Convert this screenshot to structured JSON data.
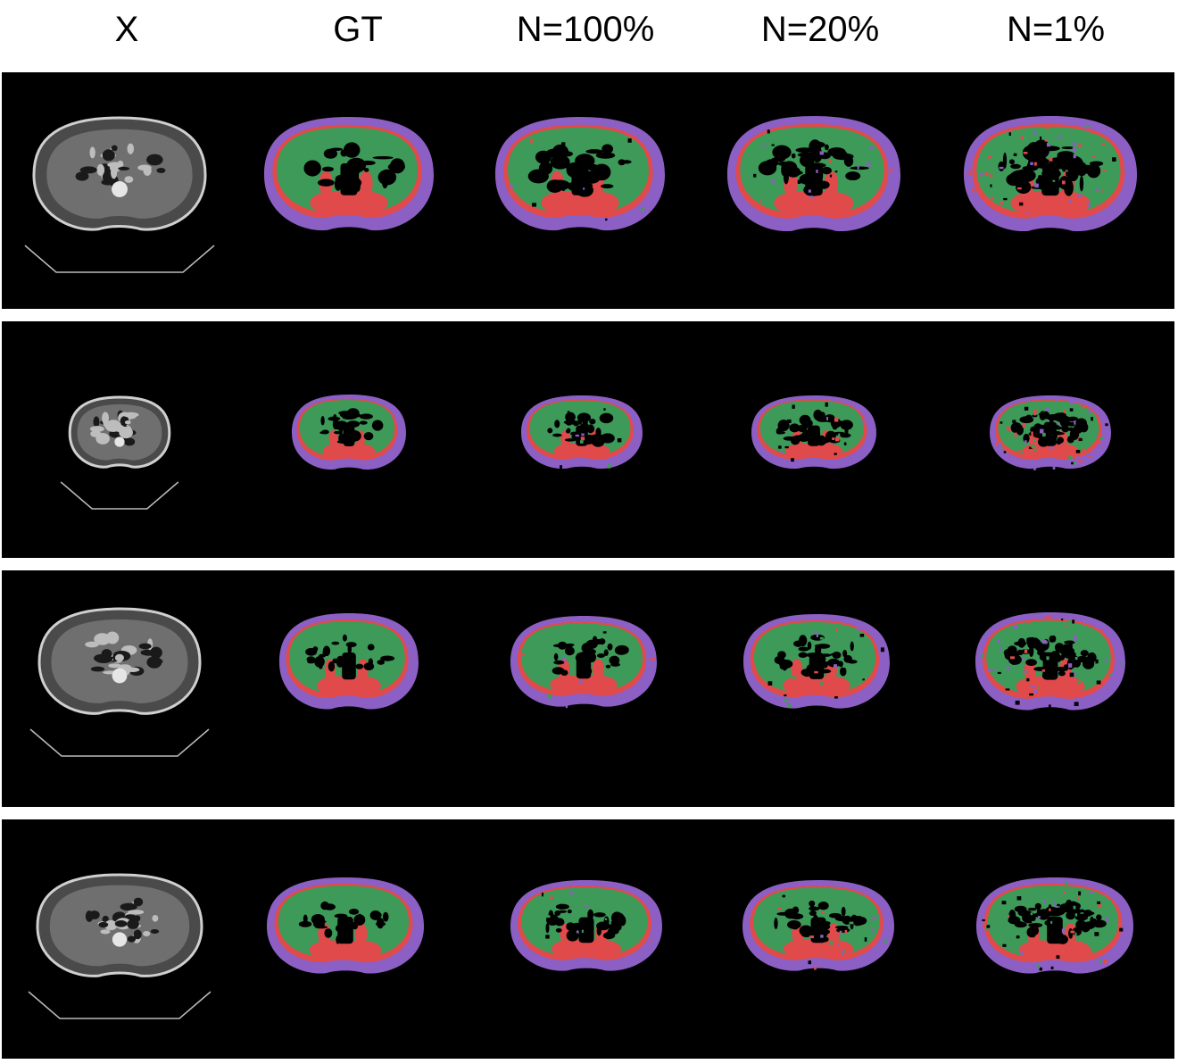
{
  "columns": {
    "x": "X",
    "gt": "GT",
    "n100": "N=100%",
    "n20": "N=20%",
    "n1": "N=1%"
  },
  "colors": {
    "background": "#000000",
    "separator": "#ffffff",
    "subcutaneous_fat": "#8c5fc4",
    "muscle": "#e04a4a",
    "visceral": "#3d9a58",
    "ct_gray": "#9a9a9a"
  },
  "rows": [
    {
      "scan": "ct-slice-1"
    },
    {
      "scan": "ct-slice-2"
    },
    {
      "scan": "ct-slice-3"
    },
    {
      "scan": "ct-slice-4"
    }
  ]
}
